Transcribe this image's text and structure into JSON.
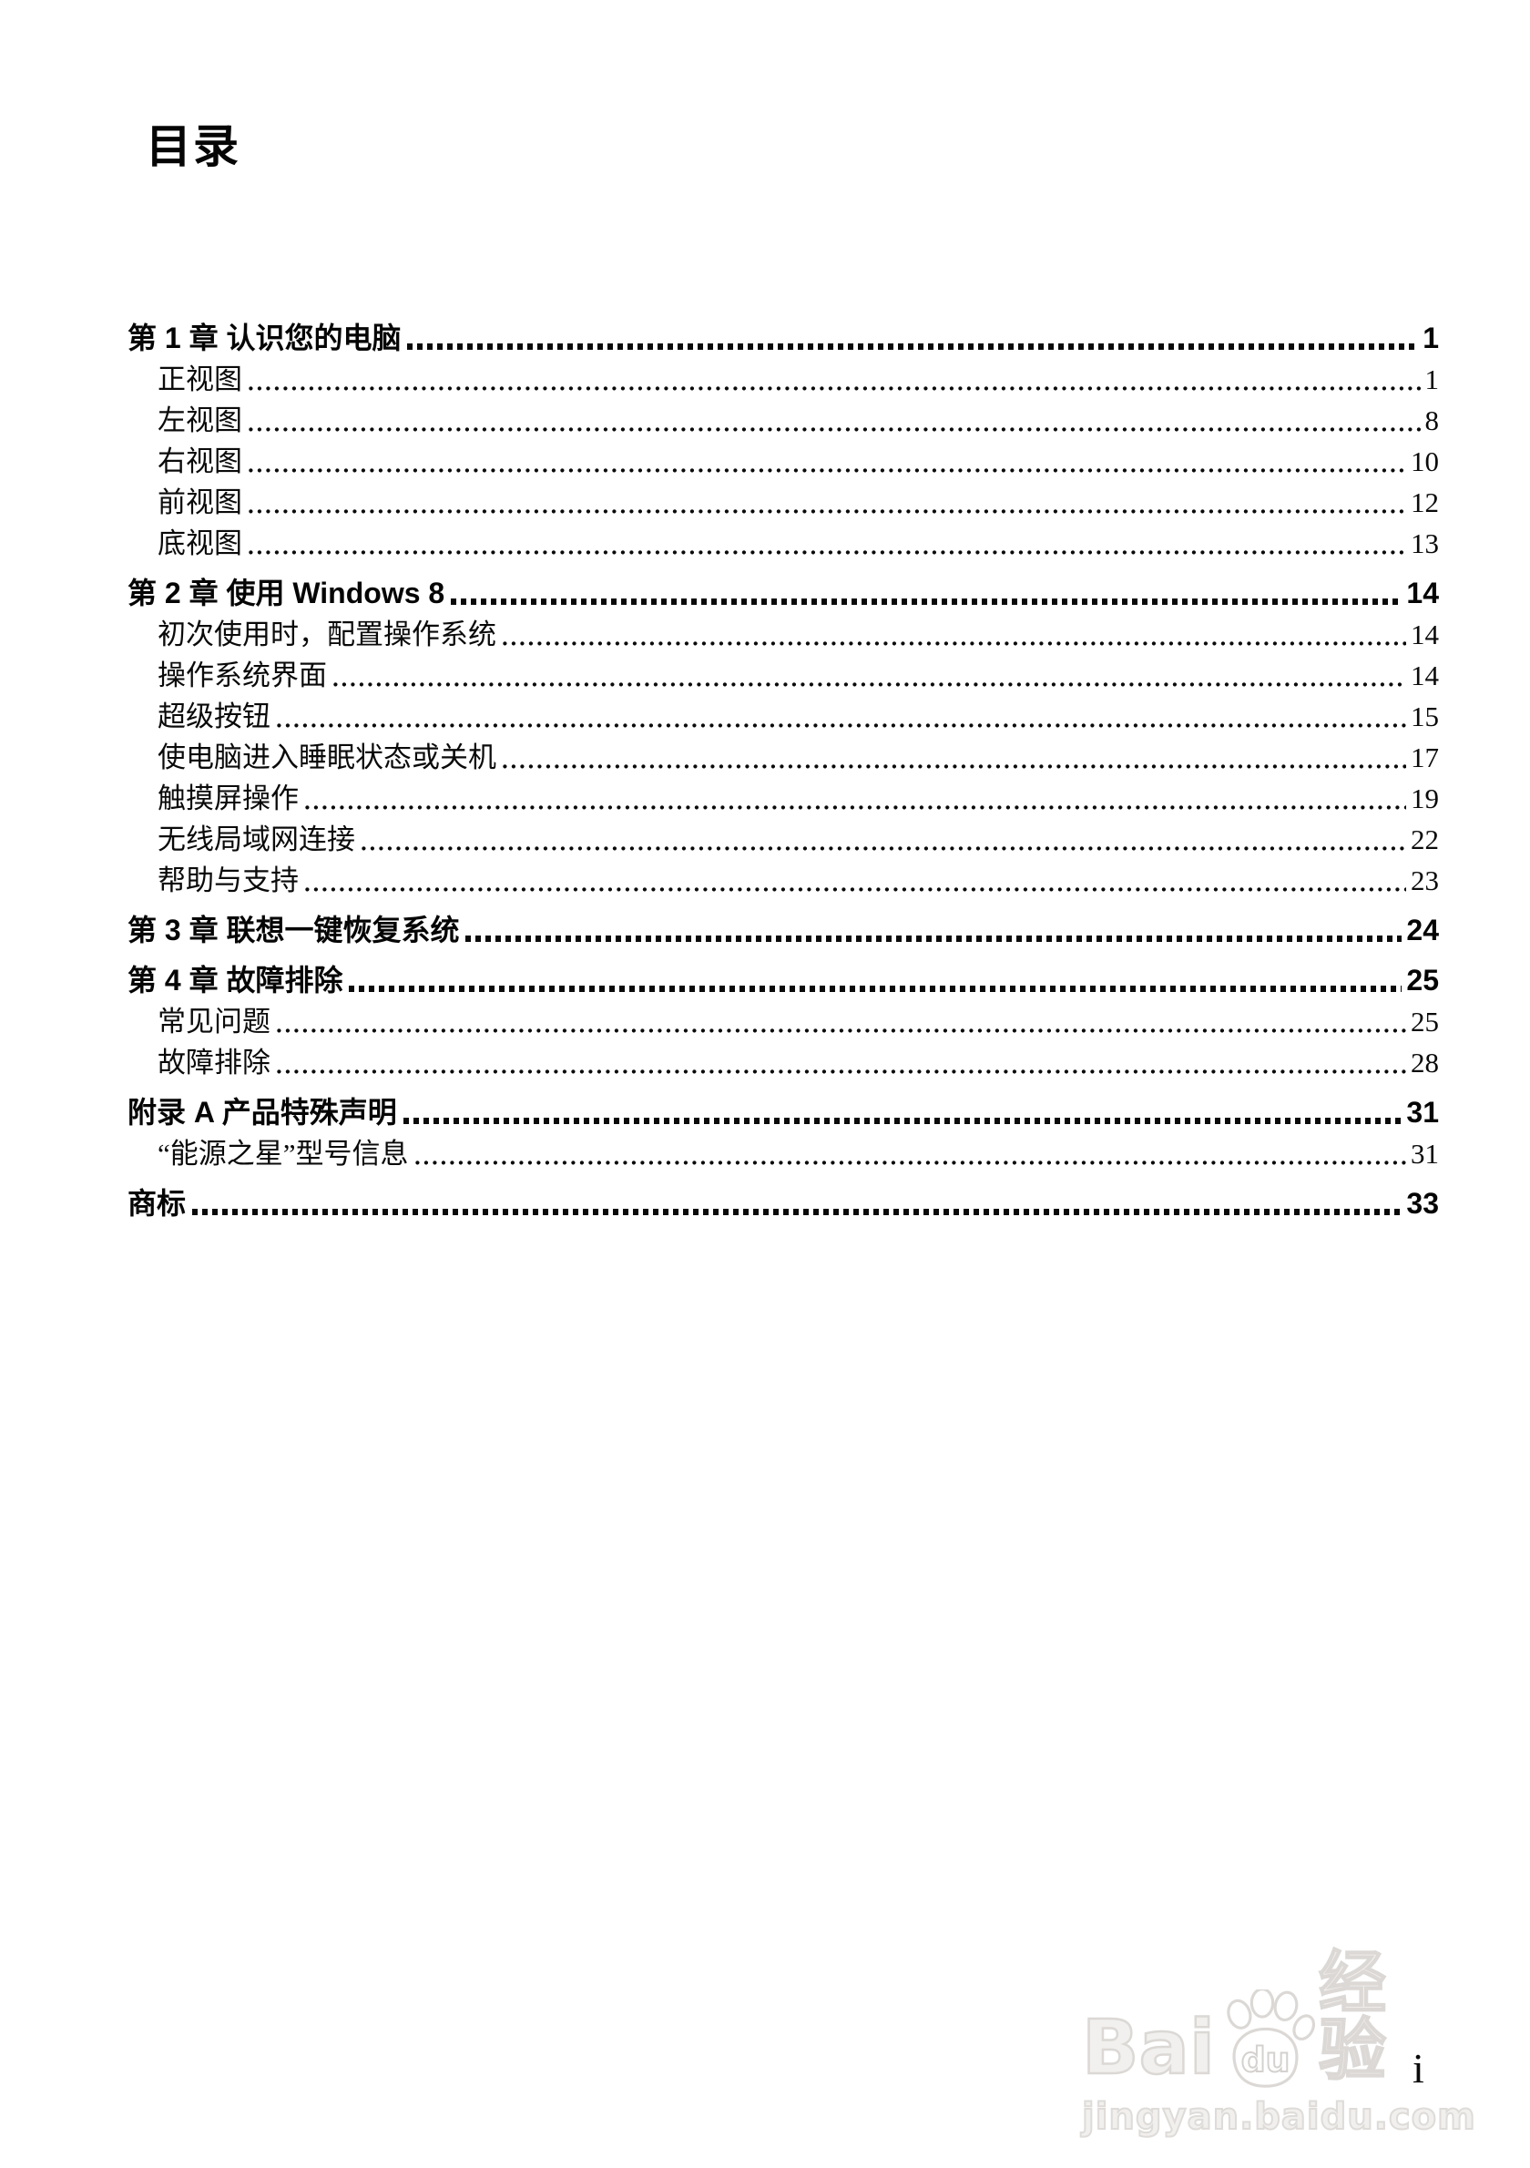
{
  "page": {
    "title": "目录",
    "number": "i"
  },
  "toc": {
    "rows": [
      {
        "type": "chapter",
        "label": "第 1 章 认识您的电脑",
        "page": "1"
      },
      {
        "type": "entry",
        "label": "正视图",
        "page": "1"
      },
      {
        "type": "entry",
        "label": "左视图",
        "page": "8"
      },
      {
        "type": "entry",
        "label": "右视图",
        "page": "10"
      },
      {
        "type": "entry",
        "label": "前视图",
        "page": "12"
      },
      {
        "type": "entry",
        "label": "底视图",
        "page": "13"
      },
      {
        "type": "chapter",
        "label": "第 2 章 使用 Windows 8",
        "page": "14"
      },
      {
        "type": "entry",
        "label": "初次使用时，配置操作系统",
        "page": "14"
      },
      {
        "type": "entry",
        "label": "操作系统界面",
        "page": "14"
      },
      {
        "type": "entry",
        "label": "超级按钮",
        "page": "15"
      },
      {
        "type": "entry",
        "label": "使电脑进入睡眠状态或关机",
        "page": "17"
      },
      {
        "type": "entry",
        "label": "触摸屏操作",
        "page": "19"
      },
      {
        "type": "entry",
        "label": "无线局域网连接",
        "page": "22"
      },
      {
        "type": "entry",
        "label": "帮助与支持",
        "page": "23"
      },
      {
        "type": "chapter",
        "label": "第 3 章 联想一键恢复系统",
        "page": "24"
      },
      {
        "type": "chapter",
        "label": "第 4 章 故障排除",
        "page": "25"
      },
      {
        "type": "entry",
        "label": "常见问题",
        "page": "25"
      },
      {
        "type": "entry",
        "label": "故障排除",
        "page": "28"
      },
      {
        "type": "chapter",
        "label": "附录 A 产品特殊声明",
        "page": "31"
      },
      {
        "type": "entry",
        "label": "“能源之星”型号信息",
        "page": "31"
      },
      {
        "type": "chapter",
        "label": "商标",
        "page": "33"
      }
    ]
  },
  "watermark": {
    "bai": "Bai",
    "du": "du",
    "cn": "经验",
    "url": "jingyan.baidu.com",
    "color": "#dbd8d5"
  }
}
